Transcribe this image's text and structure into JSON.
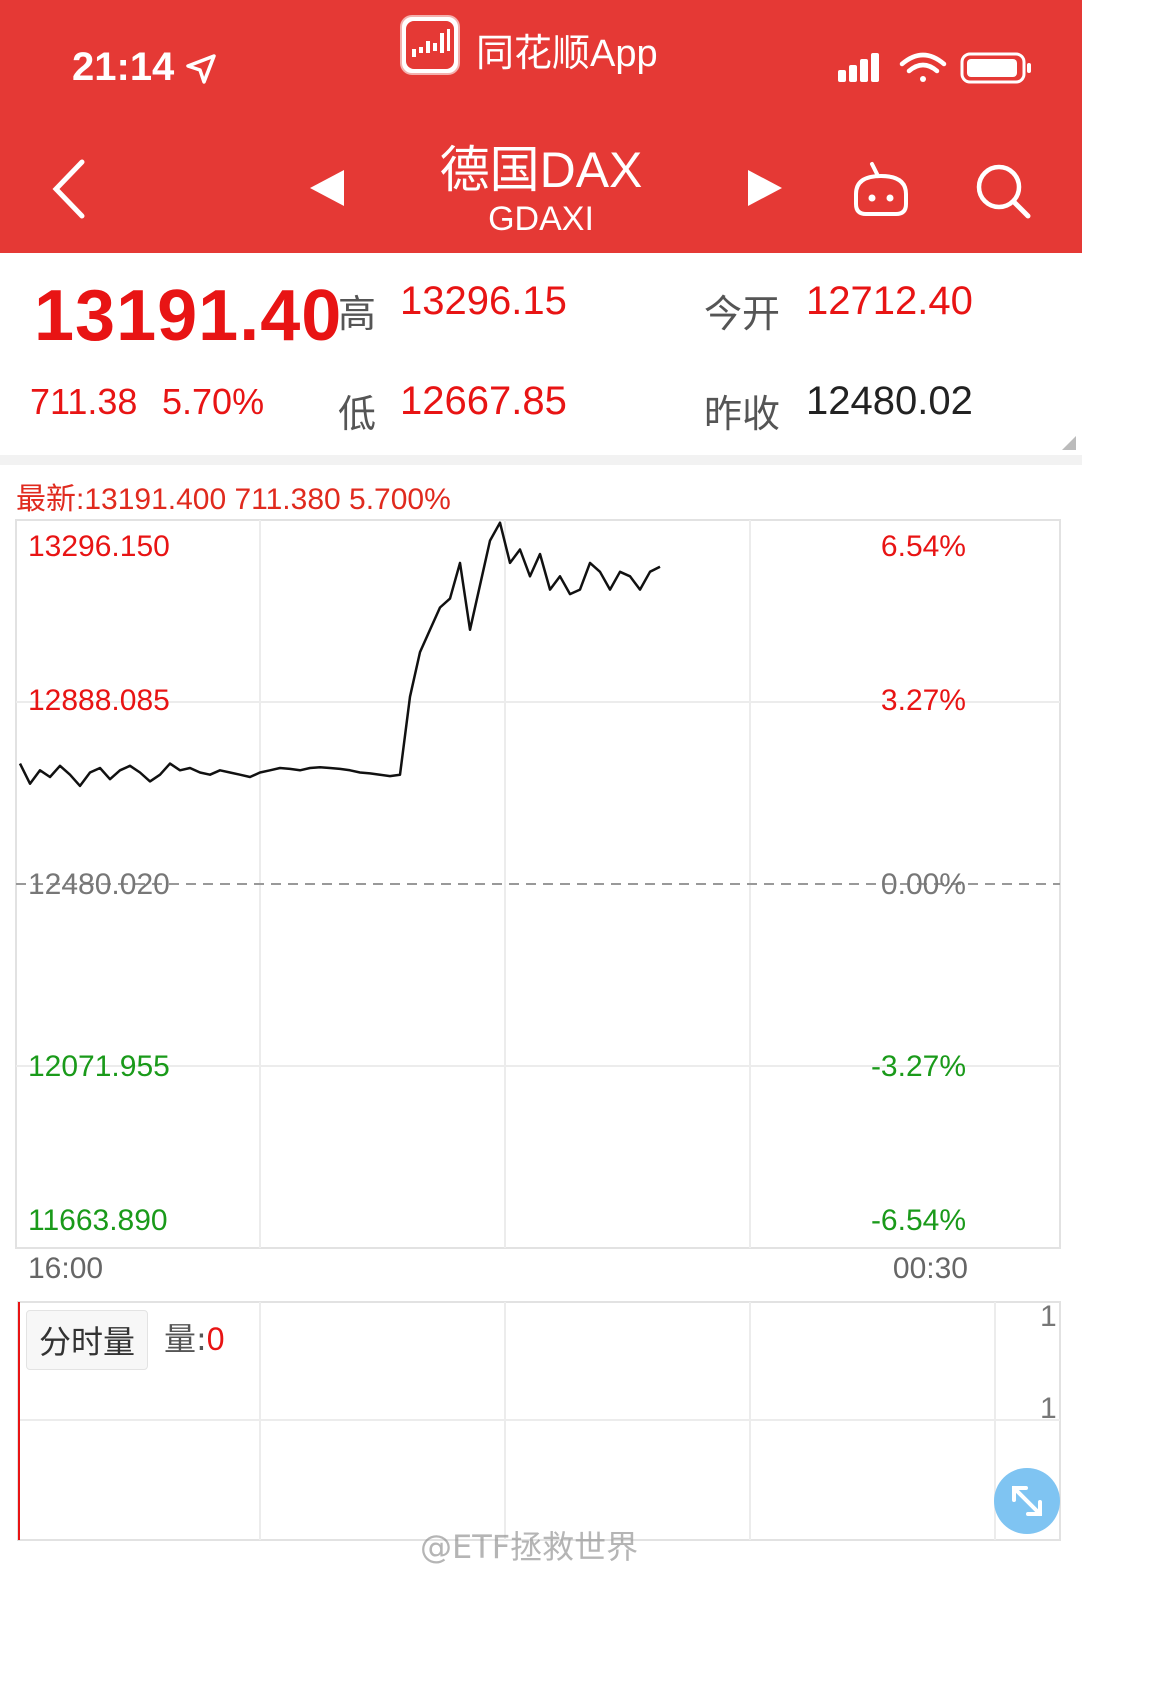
{
  "status_bar": {
    "time": "21:14"
  },
  "app_bar": {
    "app_name": "同花顺App"
  },
  "nav": {
    "title": "德国DAX",
    "code": "GDAXI"
  },
  "quote": {
    "last": "13191.40",
    "change": "711.38",
    "change_pct": "5.70%",
    "high_label": "高",
    "high": "13296.15",
    "low_label": "低",
    "low": "12667.85",
    "open_label": "今开",
    "open": "12712.40",
    "prev_close_label": "昨收",
    "prev_close": "12480.02"
  },
  "chart": {
    "latest": "最新:13191.400 711.380 5.700%",
    "price_ticks": [
      "13296.150",
      "12888.085",
      "12480.020",
      "12071.955",
      "11663.890"
    ],
    "pct_ticks": [
      "6.54%",
      "3.27%",
      "0.00%",
      "-3.27%",
      "-6.54%"
    ],
    "time_start": "16:00",
    "time_end": "00:30"
  },
  "chart_data": {
    "type": "line",
    "ylim": [
      11663.89,
      13296.15
    ],
    "baseline": 12480.02,
    "series": [
      {
        "values": [
          12750,
          12705,
          12735,
          12720,
          12745,
          12725,
          12700,
          12730,
          12740,
          12715,
          12735,
          12745,
          12730,
          12710,
          12725,
          12750,
          12735,
          12740,
          12730,
          12725,
          12735,
          12730,
          12725,
          12720,
          12730,
          12735,
          12740,
          12738,
          12735,
          12740,
          12742,
          12740,
          12738,
          12735,
          12730,
          12728,
          12725,
          12722,
          12725,
          12900,
          13000,
          13050,
          13100,
          13120,
          13200,
          13050,
          13150,
          13250,
          13290,
          13200,
          13230,
          13170,
          13220,
          13140,
          13170,
          13130,
          13140,
          13200,
          13180,
          13140,
          13180,
          13170,
          13140,
          13180,
          13191.4
        ]
      }
    ]
  },
  "volume": {
    "tab_label": "分时量",
    "label": "量:",
    "value": "0",
    "ticks": [
      "1",
      "1"
    ]
  },
  "watermark": "@ETF拯救世界",
  "colors": {
    "header": "#e53935",
    "up": "#e81414",
    "down": "#1a9a1a"
  }
}
